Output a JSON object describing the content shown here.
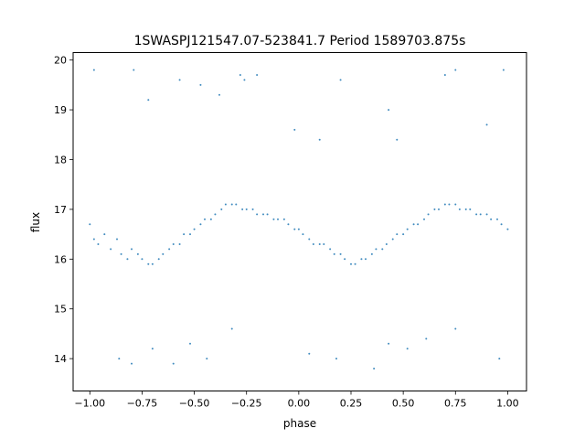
{
  "chart_data": {
    "type": "scatter",
    "title": "1SWASPJ121547.07-523841.7 Period 1589703.875s",
    "xlabel": "phase",
    "ylabel": "flux",
    "xlim": [
      -1.08,
      1.09
    ],
    "ylim": [
      13.35,
      20.15
    ],
    "grid": false,
    "legend": "none",
    "marker_color": "#1f77b4",
    "x_ticks": [
      {
        "value": -1.0,
        "label": "−1.00"
      },
      {
        "value": -0.75,
        "label": "−0.75"
      },
      {
        "value": -0.5,
        "label": "−0.50"
      },
      {
        "value": -0.25,
        "label": "−0.25"
      },
      {
        "value": 0.0,
        "label": "0.00"
      },
      {
        "value": 0.25,
        "label": "0.25"
      },
      {
        "value": 0.5,
        "label": "0.50"
      },
      {
        "value": 0.75,
        "label": "0.75"
      },
      {
        "value": 1.0,
        "label": "1.00"
      }
    ],
    "y_ticks": [
      {
        "value": 14,
        "label": "14"
      },
      {
        "value": 15,
        "label": "15"
      },
      {
        "value": 16,
        "label": "16"
      },
      {
        "value": 17,
        "label": "17"
      },
      {
        "value": 18,
        "label": "18"
      },
      {
        "value": 19,
        "label": "19"
      },
      {
        "value": 20,
        "label": "20"
      }
    ],
    "series": [
      {
        "points": [
          [
            -1.0,
            16.7
          ],
          [
            -0.98,
            16.4
          ],
          [
            -0.96,
            16.3
          ],
          [
            -0.93,
            16.5
          ],
          [
            -0.9,
            16.2
          ],
          [
            -0.87,
            16.4
          ],
          [
            -0.85,
            16.1
          ],
          [
            -0.82,
            16.0
          ],
          [
            -0.8,
            16.2
          ],
          [
            -0.77,
            16.1
          ],
          [
            -0.75,
            16.0
          ],
          [
            -0.72,
            15.9
          ],
          [
            -0.7,
            15.9
          ],
          [
            -0.67,
            16.0
          ],
          [
            -0.65,
            16.1
          ],
          [
            -0.62,
            16.2
          ],
          [
            -0.6,
            16.3
          ],
          [
            -0.57,
            16.3
          ],
          [
            -0.55,
            16.5
          ],
          [
            -0.52,
            16.5
          ],
          [
            -0.5,
            16.6
          ],
          [
            -0.47,
            16.7
          ],
          [
            -0.45,
            16.8
          ],
          [
            -0.42,
            16.8
          ],
          [
            -0.4,
            16.9
          ],
          [
            -0.37,
            17.0
          ],
          [
            -0.35,
            17.1
          ],
          [
            -0.32,
            17.1
          ],
          [
            -0.3,
            17.1
          ],
          [
            -0.27,
            17.0
          ],
          [
            -0.25,
            17.0
          ],
          [
            -0.22,
            17.0
          ],
          [
            -0.2,
            16.9
          ],
          [
            -0.17,
            16.9
          ],
          [
            -0.15,
            16.9
          ],
          [
            -0.12,
            16.8
          ],
          [
            -0.1,
            16.8
          ],
          [
            -0.07,
            16.8
          ],
          [
            -0.05,
            16.7
          ],
          [
            -0.02,
            16.6
          ],
          [
            0.0,
            16.6
          ],
          [
            0.02,
            16.5
          ],
          [
            0.05,
            16.4
          ],
          [
            0.07,
            16.3
          ],
          [
            0.1,
            16.3
          ],
          [
            0.12,
            16.3
          ],
          [
            0.15,
            16.2
          ],
          [
            0.17,
            16.1
          ],
          [
            0.2,
            16.1
          ],
          [
            0.22,
            16.0
          ],
          [
            0.25,
            15.9
          ],
          [
            0.27,
            15.9
          ],
          [
            0.3,
            16.0
          ],
          [
            0.32,
            16.0
          ],
          [
            0.35,
            16.1
          ],
          [
            0.37,
            16.2
          ],
          [
            0.4,
            16.2
          ],
          [
            0.42,
            16.3
          ],
          [
            0.45,
            16.4
          ],
          [
            0.47,
            16.5
          ],
          [
            0.5,
            16.5
          ],
          [
            0.52,
            16.6
          ],
          [
            0.55,
            16.7
          ],
          [
            0.57,
            16.7
          ],
          [
            0.6,
            16.8
          ],
          [
            0.62,
            16.9
          ],
          [
            0.65,
            17.0
          ],
          [
            0.67,
            17.0
          ],
          [
            0.7,
            17.1
          ],
          [
            0.72,
            17.1
          ],
          [
            0.75,
            17.1
          ],
          [
            0.77,
            17.0
          ],
          [
            0.8,
            17.0
          ],
          [
            0.82,
            17.0
          ],
          [
            0.85,
            16.9
          ],
          [
            0.87,
            16.9
          ],
          [
            0.9,
            16.9
          ],
          [
            0.92,
            16.8
          ],
          [
            0.95,
            16.8
          ],
          [
            0.97,
            16.7
          ],
          [
            1.0,
            16.6
          ],
          [
            -0.98,
            19.8
          ],
          [
            -0.79,
            19.8
          ],
          [
            -0.72,
            19.2
          ],
          [
            -0.57,
            19.6
          ],
          [
            -0.47,
            19.5
          ],
          [
            -0.38,
            19.3
          ],
          [
            -0.28,
            19.7
          ],
          [
            -0.26,
            19.6
          ],
          [
            -0.2,
            19.7
          ],
          [
            -0.02,
            18.6
          ],
          [
            0.1,
            18.4
          ],
          [
            0.2,
            19.6
          ],
          [
            0.43,
            19.0
          ],
          [
            0.47,
            18.4
          ],
          [
            0.7,
            19.7
          ],
          [
            0.75,
            19.8
          ],
          [
            0.9,
            18.7
          ],
          [
            0.98,
            19.8
          ],
          [
            -0.86,
            14.0
          ],
          [
            -0.8,
            13.9
          ],
          [
            -0.7,
            14.2
          ],
          [
            -0.6,
            13.9
          ],
          [
            -0.52,
            14.3
          ],
          [
            -0.44,
            14.0
          ],
          [
            -0.32,
            14.6
          ],
          [
            0.05,
            14.1
          ],
          [
            0.18,
            14.0
          ],
          [
            0.36,
            13.8
          ],
          [
            0.43,
            14.3
          ],
          [
            0.52,
            14.2
          ],
          [
            0.61,
            14.4
          ],
          [
            0.75,
            14.6
          ],
          [
            0.96,
            14.0
          ]
        ]
      }
    ]
  }
}
